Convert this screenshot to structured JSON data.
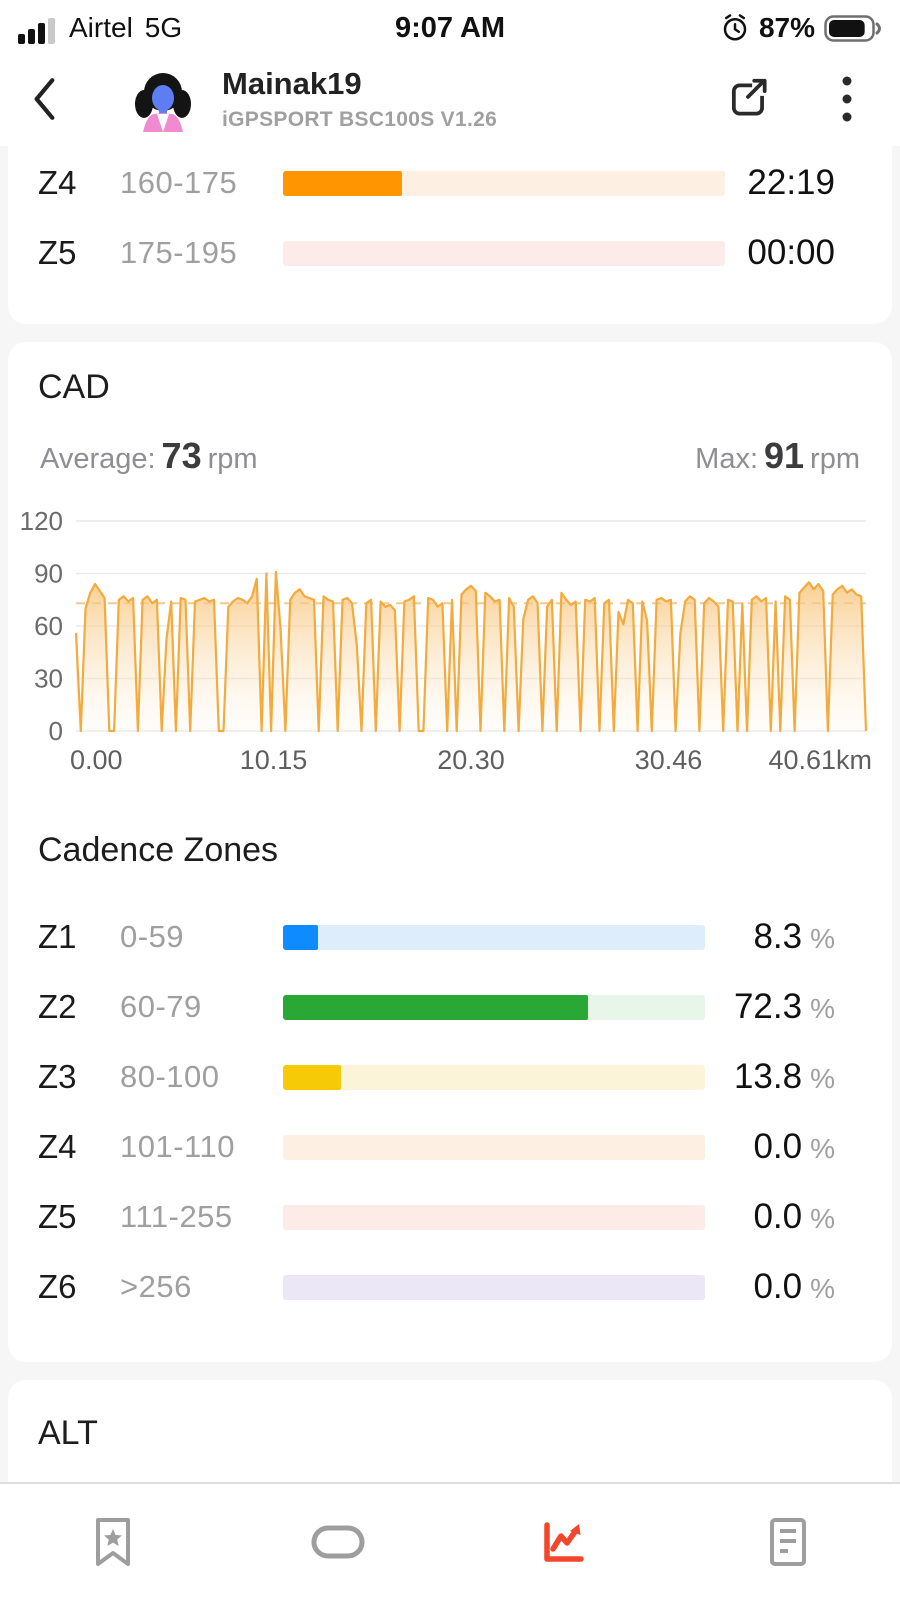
{
  "status_bar": {
    "carrier": "Airtel",
    "network": "5G",
    "time": "9:07 AM",
    "battery_pct": "87%",
    "battery_level": 87
  },
  "header": {
    "title": "Mainak19",
    "subtitle": "iGPSPORT BSC100S V1.26"
  },
  "hr_zones": {
    "rows": [
      {
        "zone": "Z4",
        "range": "160-175",
        "value": "22:19",
        "unit": "",
        "fill_pct": 27,
        "fill_color": "#ff9500",
        "track_color": "#fdf0e2"
      },
      {
        "zone": "Z5",
        "range": "175-195",
        "value": "00:00",
        "unit": "",
        "fill_pct": 0,
        "fill_color": "#ff6257",
        "track_color": "#fcebe9"
      }
    ]
  },
  "cad": {
    "title": "CAD",
    "avg_label": "Average:",
    "avg_value": "73",
    "avg_unit": "rpm",
    "max_label": "Max:",
    "max_value": "91",
    "max_unit": "rpm"
  },
  "chart_data": {
    "type": "area",
    "title": "CAD (cadence, rpm, vs distance km)",
    "xlabel": "distance (km)",
    "ylabel": "rpm",
    "ylim": [
      0,
      120
    ],
    "yticks": [
      0,
      30,
      60,
      90,
      120
    ],
    "x_range_km": [
      0,
      40.61
    ],
    "x_tick_labels": [
      "0.00",
      "10.15",
      "20.30",
      "30.46",
      "40.61km"
    ],
    "average": 73,
    "max": 91,
    "line_color": "#f3aa3e",
    "avg_line_color": "#f5c98d",
    "grid_color": "#eaeaea",
    "values": [
      56,
      0,
      70,
      79,
      84,
      80,
      76,
      0,
      0,
      75,
      77,
      74,
      76,
      0,
      75,
      77,
      73,
      75,
      0,
      52,
      74,
      0,
      76,
      75,
      0,
      74,
      75,
      76,
      74,
      75,
      0,
      0,
      71,
      74,
      76,
      75,
      73,
      77,
      87,
      0,
      90,
      0,
      91,
      58,
      0,
      75,
      79,
      81,
      77,
      76,
      75,
      0,
      77,
      75,
      74,
      0,
      75,
      76,
      73,
      49,
      0,
      73,
      75,
      0,
      74,
      71,
      72,
      69,
      0,
      74,
      75,
      77,
      0,
      0,
      76,
      75,
      71,
      73,
      0,
      75,
      0,
      78,
      81,
      83,
      80,
      0,
      79,
      77,
      74,
      75,
      0,
      76,
      71,
      0,
      64,
      75,
      77,
      73,
      0,
      71,
      75,
      0,
      79,
      75,
      72,
      74,
      0,
      75,
      74,
      76,
      0,
      73,
      75,
      0,
      68,
      61,
      75,
      73,
      0,
      74,
      63,
      0,
      75,
      76,
      74,
      75,
      0,
      56,
      74,
      77,
      75,
      0,
      73,
      76,
      74,
      71,
      0,
      75,
      74,
      0,
      73,
      0,
      75,
      77,
      74,
      76,
      0,
      74,
      0,
      77,
      75,
      0,
      79,
      82,
      85,
      81,
      84,
      80,
      0,
      78,
      81,
      83,
      79,
      81,
      78,
      77,
      0
    ]
  },
  "cadence_zones": {
    "title": "Cadence Zones",
    "rows": [
      {
        "zone": "Z1",
        "range": "0-59",
        "value": "8.3",
        "unit": "%",
        "fill_pct": 8.3,
        "fill_color": "#0e8cff",
        "track_color": "#ddedfb"
      },
      {
        "zone": "Z2",
        "range": "60-79",
        "value": "72.3",
        "unit": "%",
        "fill_pct": 72.3,
        "fill_color": "#2aa835",
        "track_color": "#e8f5e9"
      },
      {
        "zone": "Z3",
        "range": "80-100",
        "value": "13.8",
        "unit": "%",
        "fill_pct": 13.8,
        "fill_color": "#f6ca06",
        "track_color": "#fbf4d8"
      },
      {
        "zone": "Z4",
        "range": "101-110",
        "value": "0.0",
        "unit": "%",
        "fill_pct": 0,
        "fill_color": "#ff9500",
        "track_color": "#fdf0e2"
      },
      {
        "zone": "Z5",
        "range": "111-255",
        "value": "0.0",
        "unit": "%",
        "fill_pct": 0,
        "fill_color": "#ff6257",
        "track_color": "#fcebe7"
      },
      {
        "zone": "Z6",
        "range": ">256",
        "value": "0.0",
        "unit": "%",
        "fill_pct": 0,
        "fill_color": "#9b7de0",
        "track_color": "#ece7f7"
      }
    ]
  },
  "alt": {
    "title": "ALT"
  },
  "tab_bar": {
    "active_color": "#f4462a",
    "inactive_color": "#9e9e9e",
    "items": [
      {
        "name": "bookmark-tab",
        "active": false
      },
      {
        "name": "device-band-tab",
        "active": false
      },
      {
        "name": "analysis-chart-tab",
        "active": true
      },
      {
        "name": "report-tab",
        "active": false
      }
    ]
  }
}
